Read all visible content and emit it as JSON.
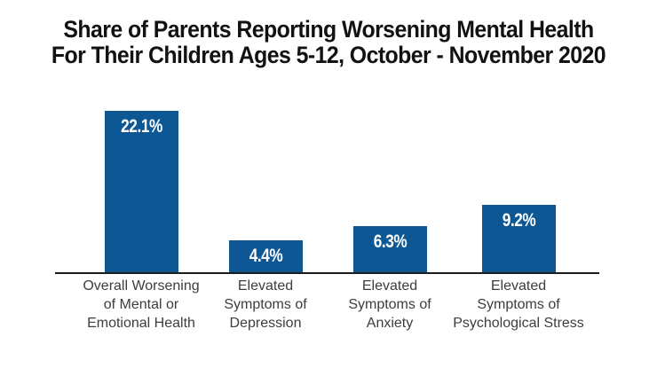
{
  "title": {
    "line1": "Share of Parents Reporting Worsening Mental Health",
    "line2": "For Their Children Ages 5-12, October - November 2020"
  },
  "colors": {
    "bar": "#0E5795",
    "axis": "#1b1b1b",
    "title_text": "#121212",
    "category_text": "#3d3d3d",
    "value_text": "#ffffff",
    "background": "#ffffff"
  },
  "chart_data": {
    "type": "bar",
    "title": "Share of Parents Reporting Worsening Mental Health For Their Children Ages 5-12, October - November 2020",
    "categories": [
      "Overall Worsening of Mental or Emotional Health",
      "Elevated Symptoms of Depression",
      "Elevated Symptoms of Anxiety",
      "Elevated Symptoms of Psychological Stress"
    ],
    "category_lines": [
      [
        "Overall Worsening",
        "of Mental or",
        "Emotional Health"
      ],
      [
        "Elevated",
        "Symptoms of",
        "Depression"
      ],
      [
        "Elevated",
        "Symptoms of",
        "Anxiety"
      ],
      [
        "Elevated",
        "Symptoms of",
        "Psychological Stress"
      ]
    ],
    "values": [
      22.1,
      4.4,
      6.3,
      9.2
    ],
    "value_labels": [
      "22.1%",
      "4.4%",
      "6.3%",
      "9.2%"
    ],
    "unit": "%",
    "xlabel": "",
    "ylabel": "",
    "ylim": [
      0,
      24
    ],
    "grid": false,
    "legend": false,
    "y_axis_visible": false,
    "value_label_position": "inside-top"
  }
}
